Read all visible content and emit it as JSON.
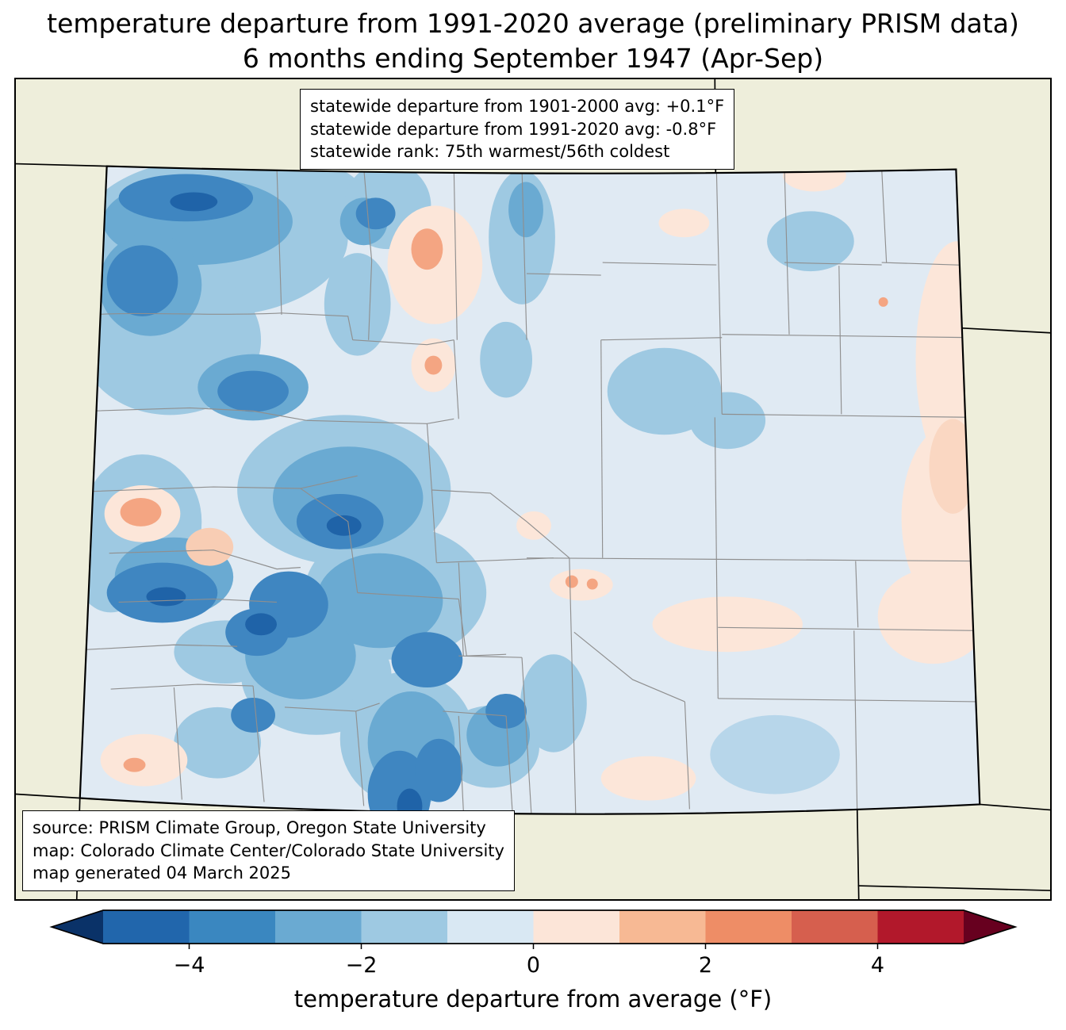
{
  "title": {
    "line1": "temperature departure from 1991-2020 average (preliminary PRISM data)",
    "line2": "6 months ending September 1947 (Apr-Sep)"
  },
  "stats_box": {
    "lines": [
      "statewide departure from 1901-2000 avg: +0.1°F",
      "statewide departure from 1991-2020 avg: -0.8°F",
      "statewide rank: 75th warmest/56th coldest"
    ]
  },
  "source_box": {
    "lines": [
      "source: PRISM Climate Group, Oregon State University",
      "map: Colorado Climate Center/Colorado State University",
      "map generated 04 March 2025"
    ]
  },
  "colorbar": {
    "label": "temperature departure from average (°F)",
    "range": [
      -5,
      5
    ],
    "ticks": [
      {
        "value": -4,
        "label": "−4"
      },
      {
        "value": -2,
        "label": "−2"
      },
      {
        "value": 0,
        "label": "0"
      },
      {
        "value": 2,
        "label": "2"
      },
      {
        "value": 4,
        "label": "4"
      }
    ],
    "segment_colors": [
      "#2166ac",
      "#3a87c0",
      "#6aaad2",
      "#9ec9e2",
      "#d9e8f3",
      "#fce5d8",
      "#f7b994",
      "#ee8d66",
      "#d65f4e",
      "#b2182b"
    ],
    "under_color": "#0a3268",
    "over_color": "#67001f"
  },
  "map": {
    "background_color": "#eeeedb",
    "state_fill_base": "#e0eaf3",
    "county_line_color": "#8f8f8f",
    "state_border_color": "#000000"
  }
}
